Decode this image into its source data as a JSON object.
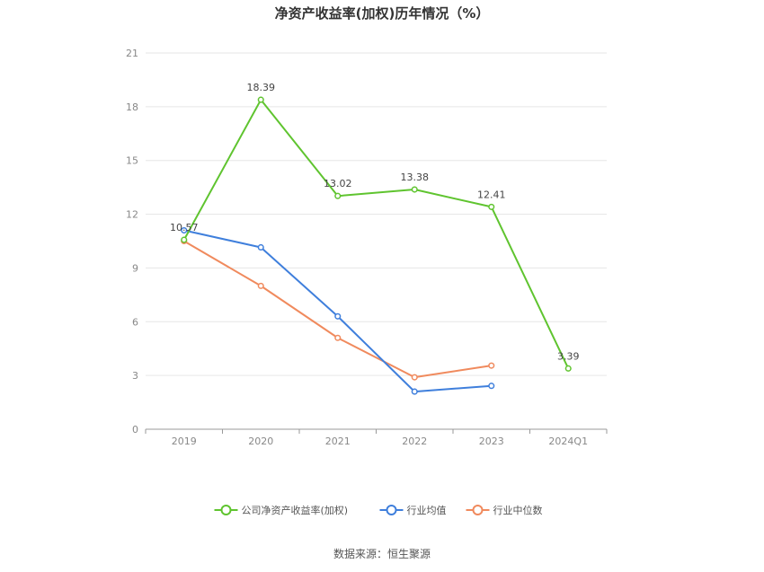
{
  "chart_data": {
    "type": "line",
    "title": "净资产收益率(加权)历年情况（%）",
    "categories": [
      "2019",
      "2020",
      "2021",
      "2022",
      "2023",
      "2024Q1"
    ],
    "ylim": [
      0,
      21
    ],
    "yticks": [
      0,
      3,
      6,
      9,
      12,
      15,
      18,
      21
    ],
    "grid": true,
    "legend_position": "bottom",
    "series": [
      {
        "name": "公司净资产收益率(加权)",
        "color": "#5fc42f",
        "values": [
          10.57,
          18.39,
          13.02,
          13.38,
          12.41,
          3.39
        ],
        "labels": [
          "10.57",
          "18.39",
          "13.02",
          "13.38",
          "12.41",
          "3.39"
        ]
      },
      {
        "name": "行业均值",
        "color": "#3f7fdc",
        "values": [
          11.1,
          10.15,
          6.3,
          2.1,
          2.42,
          null
        ],
        "labels": []
      },
      {
        "name": "行业中位数",
        "color": "#f08a5d",
        "values": [
          10.5,
          8.0,
          5.1,
          2.9,
          3.55,
          null
        ],
        "labels": []
      }
    ]
  },
  "source_text": "数据来源：恒生聚源"
}
